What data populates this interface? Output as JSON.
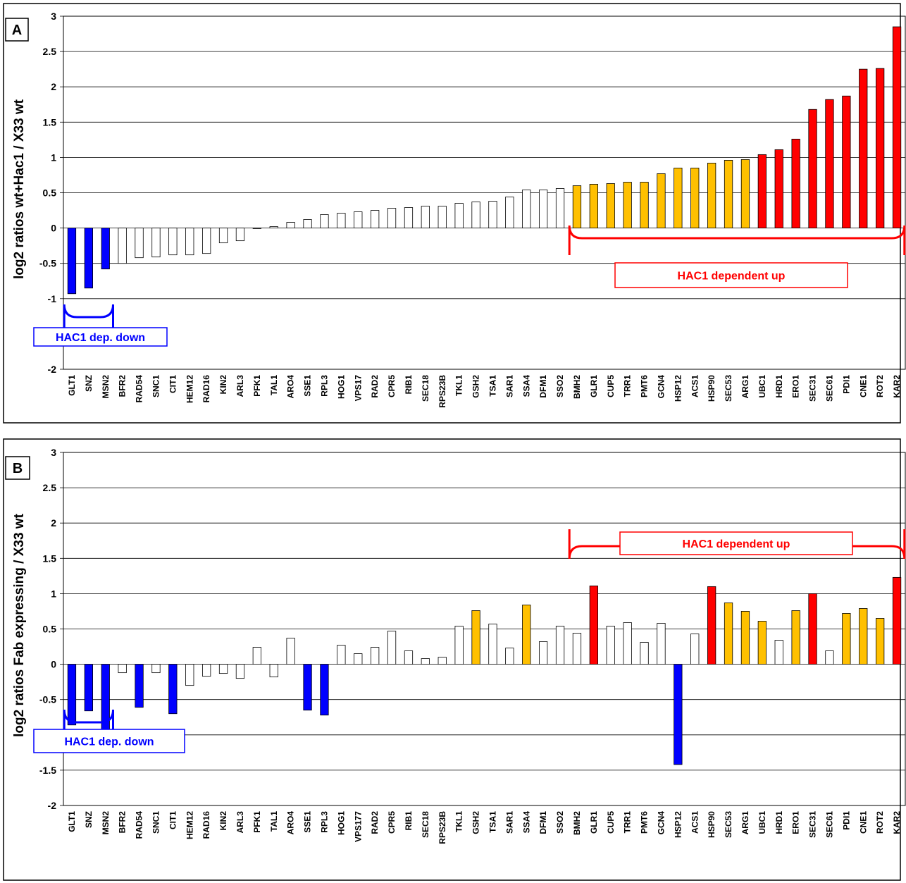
{
  "colors": {
    "red": "#ff0000",
    "yellow": "#ffc000",
    "blue": "#0000ff",
    "white": "#ffffff"
  },
  "chart_data": [
    {
      "type": "bar",
      "panel_label": "A",
      "ylabel": "log2 ratios wt+Hac1 / X33 wt",
      "ylim": [
        -2,
        3
      ],
      "yticks": [
        "-2",
        "-1",
        "-0.5",
        "0",
        "0.5",
        "1",
        "1.5",
        "2",
        "2.5",
        "3"
      ],
      "grid": true,
      "categories": [
        "GLT1",
        "SNZ",
        "MSN2",
        "BFR2",
        "RAD54",
        "SNC1",
        "CIT1",
        "HEM12",
        "RAD16",
        "KIN2",
        "ARL3",
        "PFK1",
        "TAL1",
        "ARO4",
        "SSE1",
        "RPL3",
        "HOG1",
        "VPS17",
        "RAD2",
        "CPR5",
        "RIB1",
        "SEC18",
        "RPS23B",
        "TKL1",
        "GSH2",
        "TSA1",
        "SAR1",
        "SSA4",
        "DFM1",
        "SSO2",
        "BMH2",
        "GLR1",
        "CUP5",
        "TRR1",
        "PMT6",
        "GCN4",
        "HSP12",
        "ACS1",
        "HSP90",
        "SEC53",
        "ARG1",
        "UBC1",
        "HRD1",
        "ERO1",
        "SEC31",
        "SEC61",
        "PDI1",
        "CNE1",
        "ROT2",
        "KAR2"
      ],
      "values": [
        -0.93,
        -0.85,
        -0.58,
        -0.5,
        -0.42,
        -0.41,
        -0.38,
        -0.38,
        -0.36,
        -0.21,
        -0.18,
        0,
        0.02,
        0.08,
        0.12,
        0.19,
        0.21,
        0.23,
        0.25,
        0.28,
        0.29,
        0.31,
        0.31,
        0.35,
        0.37,
        0.38,
        0.44,
        0.54,
        0.54,
        0.56,
        0.6,
        0.62,
        0.63,
        0.65,
        0.65,
        0.77,
        0.85,
        0.85,
        0.92,
        0.96,
        0.97,
        1.04,
        1.11,
        1.26,
        1.68,
        1.82,
        1.87,
        2.25,
        2.26,
        2.85
      ],
      "bar_colors": [
        "blue",
        "blue",
        "blue",
        "white",
        "white",
        "white",
        "white",
        "white",
        "white",
        "white",
        "white",
        "white",
        "white",
        "white",
        "white",
        "white",
        "white",
        "white",
        "white",
        "white",
        "white",
        "white",
        "white",
        "white",
        "white",
        "white",
        "white",
        "white",
        "white",
        "white",
        "yellow",
        "yellow",
        "yellow",
        "yellow",
        "yellow",
        "yellow",
        "yellow",
        "yellow",
        "yellow",
        "yellow",
        "yellow",
        "red",
        "red",
        "red",
        "red",
        "red",
        "red",
        "red",
        "red",
        "red"
      ],
      "annotations": [
        {
          "text": "HAC1 dependent up",
          "color": "red",
          "bracket_from": "BMH2",
          "bracket_to": "KAR2"
        },
        {
          "text": "HAC1 dep. down",
          "color": "blue",
          "bracket_from": "GLT1",
          "bracket_to": "MSN2"
        }
      ]
    },
    {
      "type": "bar",
      "panel_label": "B",
      "ylabel": "log2 ratios Fab expressing / X33 wt",
      "ylim": [
        -2,
        3
      ],
      "yticks": [
        "-2",
        "-1.5",
        "-1",
        "-0.5",
        "0",
        "0.5",
        "1",
        "1.5",
        "2",
        "2.5",
        "3"
      ],
      "grid": true,
      "categories": [
        "GLT1",
        "SNZ",
        "MSN2",
        "BFR2",
        "RAD54",
        "SNC1",
        "CIT1",
        "HEM12",
        "RAD16",
        "KIN2",
        "ARL3",
        "PFK1",
        "TAL1",
        "ARO4",
        "SSE1",
        "RPL3",
        "HOG1",
        "VPS177",
        "RAD2",
        "CPR5",
        "RIB1",
        "SEC18",
        "RPS23B",
        "TKL1",
        "GSH2",
        "TSA1",
        "SAR1",
        "SSA4",
        "DFM1",
        "SSO2",
        "BMH2",
        "GLR1",
        "CUP5",
        "TRR1",
        "PMT6",
        "GCN4",
        "HSP12",
        "ACS1",
        "HSP90",
        "SEC53",
        "ARG1",
        "UBC1",
        "HRD1",
        "ERO1",
        "SEC31",
        "SEC61",
        "PDI1",
        "CNE1",
        "ROT2",
        "KAR2"
      ],
      "values": [
        -0.86,
        -0.66,
        -1.04,
        -0.12,
        -0.61,
        -0.12,
        -0.7,
        -0.3,
        -0.17,
        -0.13,
        -0.2,
        0.24,
        -0.18,
        0.37,
        -0.65,
        -0.72,
        0.27,
        0.15,
        0.24,
        0.47,
        0.19,
        0.08,
        0.1,
        0.54,
        0.76,
        0.57,
        0.23,
        0.84,
        0.32,
        0.54,
        0.44,
        1.11,
        0.54,
        0.59,
        0.31,
        0.58,
        -1.42,
        0.43,
        1.1,
        0.87,
        0.75,
        0.61,
        0.34,
        0.76,
        1.0,
        0.19,
        0.72,
        0.79,
        0.65,
        1.23
      ],
      "bar_colors": [
        "blue",
        "blue",
        "blue",
        "white",
        "blue",
        "white",
        "blue",
        "white",
        "white",
        "white",
        "white",
        "white",
        "white",
        "white",
        "blue",
        "blue",
        "white",
        "white",
        "white",
        "white",
        "white",
        "white",
        "white",
        "white",
        "yellow",
        "white",
        "white",
        "yellow",
        "white",
        "white",
        "white",
        "red",
        "white",
        "white",
        "white",
        "white",
        "blue",
        "white",
        "red",
        "yellow",
        "yellow",
        "yellow",
        "white",
        "yellow",
        "red",
        "white",
        "yellow",
        "yellow",
        "yellow",
        "red"
      ],
      "annotations": [
        {
          "text": "HAC1 dependent up",
          "color": "red",
          "bracket_from": "BMH2",
          "bracket_to": "KAR2"
        },
        {
          "text": "HAC1 dep. down",
          "color": "blue",
          "bracket_from": "GLT1",
          "bracket_to": "MSN2"
        }
      ]
    }
  ]
}
